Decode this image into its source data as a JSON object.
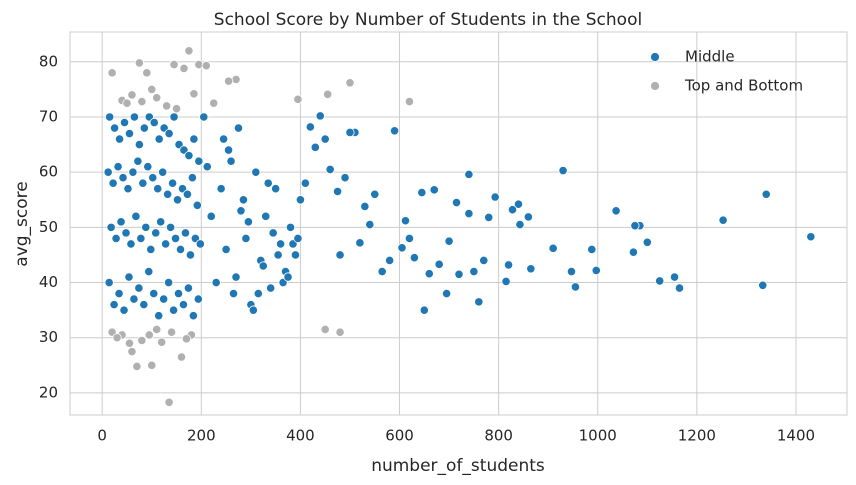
{
  "chart_data": {
    "type": "scatter",
    "title": "School Score by Number of Students in the School",
    "x_label": "number_of_students",
    "y_label": "avg_score",
    "xlim": [
      -65,
      1503
    ],
    "ylim": [
      16,
      85.4
    ],
    "xticks": [
      0,
      200,
      400,
      600,
      800,
      1000,
      1200,
      1400
    ],
    "yticks": [
      20,
      30,
      40,
      50,
      60,
      70,
      80
    ],
    "grid": true,
    "legend": "upper right",
    "series": [
      {
        "name": "Middle",
        "color": "#1f77b4",
        "x": [
          1430,
          1340,
          1333,
          1253,
          1165,
          1155,
          1125,
          1100,
          1085,
          1075,
          1072,
          1037,
          997,
          988,
          955,
          947,
          930,
          910,
          865,
          860,
          840,
          843,
          828,
          820,
          815,
          793,
          780,
          770,
          760,
          750,
          740,
          740,
          720,
          715,
          700,
          695,
          680,
          670,
          660,
          650,
          645,
          630,
          620,
          612,
          605,
          590,
          580,
          565,
          550,
          540,
          530,
          520,
          510,
          500,
          490,
          480,
          475,
          460,
          450,
          440,
          430,
          420,
          410,
          400,
          15,
          25,
          35,
          45,
          55,
          65,
          75,
          85,
          95,
          105,
          115,
          125,
          135,
          145,
          155,
          165,
          175,
          185,
          195,
          205,
          12,
          22,
          32,
          42,
          52,
          62,
          72,
          82,
          92,
          102,
          112,
          122,
          132,
          142,
          152,
          162,
          172,
          182,
          192,
          212,
          18,
          28,
          38,
          48,
          58,
          68,
          78,
          88,
          98,
          108,
          118,
          128,
          138,
          148,
          158,
          168,
          178,
          188,
          198,
          220,
          14,
          24,
          34,
          44,
          54,
          64,
          74,
          84,
          94,
          104,
          114,
          124,
          134,
          144,
          154,
          164,
          174,
          184,
          194,
          230,
          240,
          250,
          260,
          270,
          280,
          290,
          300,
          310,
          320,
          330,
          340,
          350,
          360,
          370,
          380,
          390,
          245,
          265,
          285,
          305,
          325,
          345,
          365,
          385,
          255,
          275,
          295,
          315,
          335,
          355,
          375,
          395
        ],
        "values": [
          48.3,
          56,
          39.5,
          51.3,
          39,
          41,
          40.3,
          47.3,
          50.3,
          50.3,
          45.5,
          53,
          42.2,
          46,
          39.2,
          42,
          60.3,
          46.2,
          42.5,
          51.9,
          54.2,
          50.5,
          53.2,
          43.2,
          40.2,
          55.5,
          51.8,
          44,
          36.5,
          42,
          59.6,
          52.5,
          41.5,
          54.5,
          47.5,
          38,
          43.3,
          56.8,
          41.6,
          35,
          56.3,
          44.5,
          48,
          51.2,
          46.3,
          67.5,
          44,
          42,
          56,
          50.5,
          53.8,
          47.2,
          67.2,
          67.2,
          59,
          45,
          56.5,
          60.5,
          66,
          70.2,
          64.5,
          68.2,
          58,
          55,
          70,
          68,
          66,
          69,
          67,
          70,
          65,
          68,
          70,
          69,
          66,
          68,
          67,
          70,
          65,
          64,
          63,
          66,
          62,
          70,
          60,
          58,
          61,
          59,
          57,
          60,
          62,
          58,
          61,
          59,
          57,
          60,
          56,
          58,
          55,
          57,
          56,
          59,
          54,
          61,
          50,
          48,
          51,
          49,
          47,
          52,
          48,
          50,
          46,
          49,
          51,
          47,
          50,
          48,
          46,
          49,
          45,
          48,
          47,
          52,
          40,
          36,
          38,
          35,
          41,
          37,
          39,
          36,
          42,
          38,
          34,
          37,
          40,
          35,
          38,
          36,
          39,
          34,
          37,
          40,
          57,
          46,
          62,
          41,
          53,
          48,
          36,
          60,
          44,
          52,
          39,
          57,
          47,
          42,
          50,
          45,
          66,
          38,
          55,
          35,
          43,
          49,
          40,
          47,
          64,
          68,
          51,
          38,
          58,
          45,
          41,
          48
        ]
      },
      {
        "name": "Top and Bottom",
        "color": "#b0b0b0",
        "x": [
          135,
          100,
          70,
          160,
          40,
          80,
          120,
          60,
          480,
          450,
          20,
          180,
          110,
          175,
          75,
          145,
          195,
          210,
          20,
          90,
          165,
          270,
          255,
          500,
          455,
          395,
          620,
          185,
          40,
          60,
          100,
          130,
          150,
          225,
          80,
          110,
          50,
          30,
          55,
          95,
          140,
          170
        ],
        "values": [
          18.3,
          25,
          24.8,
          26.5,
          30.5,
          29.5,
          29.2,
          27.5,
          31,
          31.5,
          31,
          30.5,
          31.5,
          82,
          79.8,
          79.5,
          79.5,
          79.3,
          78,
          78,
          78.8,
          76.8,
          76.5,
          76.2,
          74.1,
          73.2,
          72.8,
          74.2,
          73,
          74,
          75,
          72,
          71.5,
          72.5,
          72.8,
          73.5,
          72.5,
          30,
          29,
          30.5,
          31,
          29.8
        ]
      }
    ]
  }
}
